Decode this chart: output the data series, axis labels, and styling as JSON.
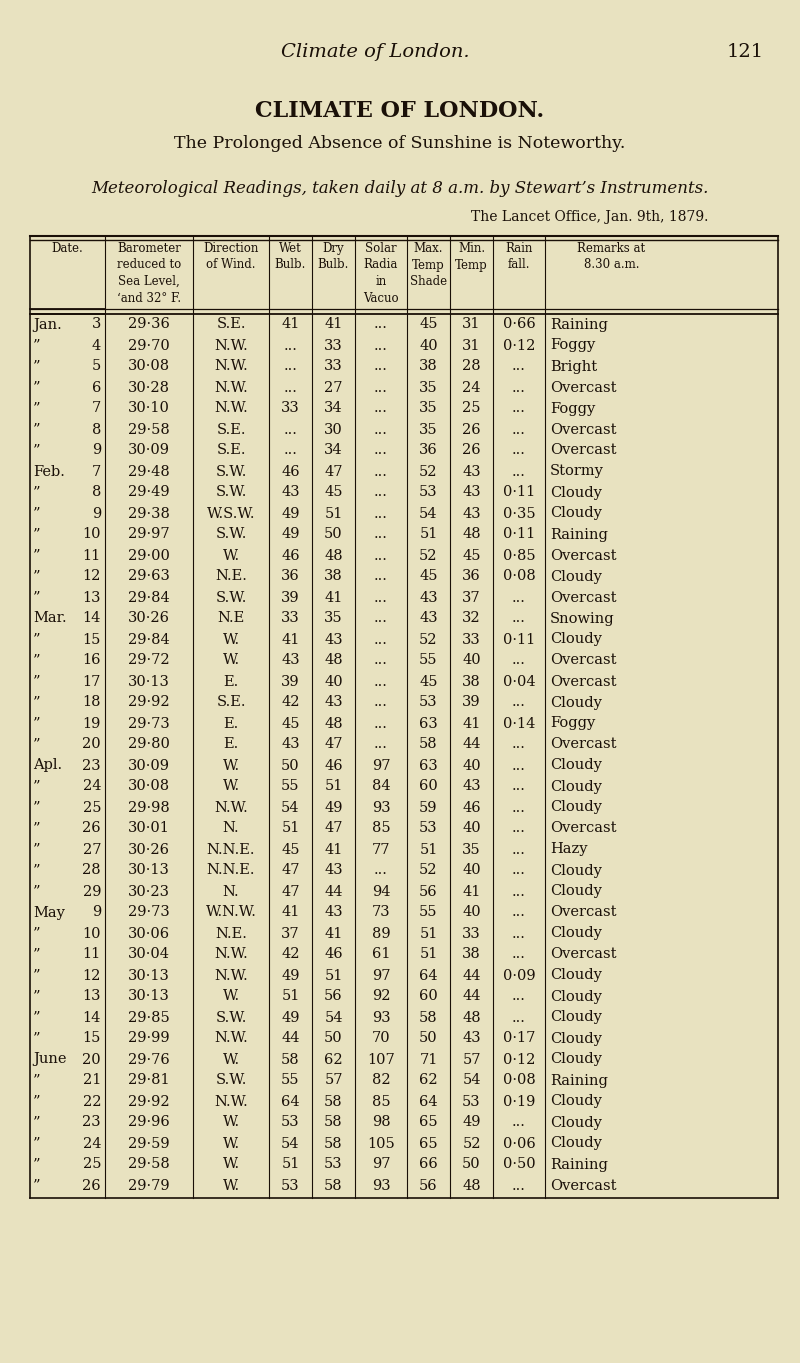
{
  "page_header_italic": "Climate of London.",
  "page_number": "121",
  "title": "CLIMATE OF LONDON.",
  "subtitle": "The Prolonged Absence of Sunshine is Noteworthy.",
  "subtitle2": "Meteorological Readings, taken daily at 8 a.m. by Stewart’s Instruments.",
  "source_line": "The Lancet Office, Jan. 9th, 1879.",
  "bg_color": "#e8e2c0",
  "text_color": "#1a1008",
  "rows": [
    [
      "Jan.",
      "3",
      "29·36",
      "S.E.",
      "41",
      "41",
      "...",
      "45",
      "31",
      "0·66",
      "Raining"
    ],
    [
      "”",
      "4",
      "29·70",
      "N.W.",
      "...",
      "33",
      "...",
      "40",
      "31",
      "0·12",
      "Foggy"
    ],
    [
      "”",
      "5",
      "30·08",
      "N.W.",
      "...",
      "33",
      "...",
      "38",
      "28",
      "...",
      "Bright"
    ],
    [
      "”",
      "6",
      "30·28",
      "N.W.",
      "...",
      "27",
      "...",
      "35",
      "24",
      "...",
      "Overcast"
    ],
    [
      "”",
      "7",
      "30·10",
      "N.W.",
      "33",
      "34",
      "...",
      "35",
      "25",
      "...",
      "Foggy"
    ],
    [
      "”",
      "8",
      "29·58",
      "S.E.",
      "...",
      "30",
      "...",
      "35",
      "26",
      "...",
      "Overcast"
    ],
    [
      "”",
      "9",
      "30·09",
      "S.E.",
      "...",
      "34",
      "...",
      "36",
      "26",
      "...",
      "Overcast"
    ],
    [
      "Feb.",
      "7",
      "29·48",
      "S.W.",
      "46",
      "47",
      "...",
      "52",
      "43",
      "...",
      "Stormy"
    ],
    [
      "”",
      "8",
      "29·49",
      "S.W.",
      "43",
      "45",
      "...",
      "53",
      "43",
      "0·11",
      "Cloudy"
    ],
    [
      "”",
      "9",
      "29·38",
      "W.S.W.",
      "49",
      "51",
      "...",
      "54",
      "43",
      "0·35",
      "Cloudy"
    ],
    [
      "”",
      "10",
      "29·97",
      "S.W.",
      "49",
      "50",
      "...",
      "51",
      "48",
      "0·11",
      "Raining"
    ],
    [
      "”",
      "11",
      "29·00",
      "W.",
      "46",
      "48",
      "...",
      "52",
      "45",
      "0·85",
      "Overcast"
    ],
    [
      "”",
      "12",
      "29·63",
      "N.E.",
      "36",
      "38",
      "...",
      "45",
      "36",
      "0·08",
      "Cloudy"
    ],
    [
      "”",
      "13",
      "29·84",
      "S.W.",
      "39",
      "41",
      "...",
      "43",
      "37",
      "...",
      "Overcast"
    ],
    [
      "Mar.",
      "14",
      "30·26",
      "N.E",
      "33",
      "35",
      "...",
      "43",
      "32",
      "...",
      "Snowing"
    ],
    [
      "”",
      "15",
      "29·84",
      "W.",
      "41",
      "43",
      "...",
      "52",
      "33",
      "0·11",
      "Cloudy"
    ],
    [
      "”",
      "16",
      "29·72",
      "W.",
      "43",
      "48",
      "...",
      "55",
      "40",
      "...",
      "Overcast"
    ],
    [
      "”",
      "17",
      "30·13",
      "E.",
      "39",
      "40",
      "...",
      "45",
      "38",
      "0·04",
      "Overcast"
    ],
    [
      "”",
      "18",
      "29·92",
      "S.E.",
      "42",
      "43",
      "...",
      "53",
      "39",
      "...",
      "Cloudy"
    ],
    [
      "”",
      "19",
      "29·73",
      "E.",
      "45",
      "48",
      "...",
      "63",
      "41",
      "0·14",
      "Foggy"
    ],
    [
      "”",
      "20",
      "29·80",
      "E.",
      "43",
      "47",
      "...",
      "58",
      "44",
      "...",
      "Overcast"
    ],
    [
      "Apl.",
      "23",
      "30·09",
      "W.",
      "50",
      "46",
      "97",
      "63",
      "40",
      "...",
      "Cloudy"
    ],
    [
      "”",
      "24",
      "30·08",
      "W.",
      "55",
      "51",
      "84",
      "60",
      "43",
      "...",
      "Cloudy"
    ],
    [
      "”",
      "25",
      "29·98",
      "N.W.",
      "54",
      "49",
      "93",
      "59",
      "46",
      "...",
      "Cloudy"
    ],
    [
      "”",
      "26",
      "30·01",
      "N.",
      "51",
      "47",
      "85",
      "53",
      "40",
      "...",
      "Overcast"
    ],
    [
      "”",
      "27",
      "30·26",
      "N.N.E.",
      "45",
      "41",
      "77",
      "51",
      "35",
      "...",
      "Hazy"
    ],
    [
      "”",
      "28",
      "30·13",
      "N.N.E.",
      "47",
      "43",
      "...",
      "52",
      "40",
      "...",
      "Cloudy"
    ],
    [
      "”",
      "29",
      "30·23",
      "N.",
      "47",
      "44",
      "94",
      "56",
      "41",
      "...",
      "Cloudy"
    ],
    [
      "May",
      "9",
      "29·73",
      "W.N.W.",
      "41",
      "43",
      "73",
      "55",
      "40",
      "...",
      "Overcast"
    ],
    [
      "”",
      "10",
      "30·06",
      "N.E.",
      "37",
      "41",
      "89",
      "51",
      "33",
      "...",
      "Cloudy"
    ],
    [
      "”",
      "11",
      "30·04",
      "N.W.",
      "42",
      "46",
      "61",
      "51",
      "38",
      "...",
      "Overcast"
    ],
    [
      "”",
      "12",
      "30·13",
      "N.W.",
      "49",
      "51",
      "97",
      "64",
      "44",
      "0·09",
      "Cloudy"
    ],
    [
      "”",
      "13",
      "30·13",
      "W.",
      "51",
      "56",
      "92",
      "60",
      "44",
      "...",
      "Cloudy"
    ],
    [
      "”",
      "14",
      "29·85",
      "S.W.",
      "49",
      "54",
      "93",
      "58",
      "48",
      "...",
      "Cloudy"
    ],
    [
      "”",
      "15",
      "29·99",
      "N.W.",
      "44",
      "50",
      "70",
      "50",
      "43",
      "0·17",
      "Cloudy"
    ],
    [
      "June",
      "20",
      "29·76",
      "W.",
      "58",
      "62",
      "107",
      "71",
      "57",
      "0·12",
      "Cloudy"
    ],
    [
      "”",
      "21",
      "29·81",
      "S.W.",
      "55",
      "57",
      "82",
      "62",
      "54",
      "0·08",
      "Raining"
    ],
    [
      "”",
      "22",
      "29·92",
      "N.W.",
      "64",
      "58",
      "85",
      "64",
      "53",
      "0·19",
      "Cloudy"
    ],
    [
      "”",
      "23",
      "29·96",
      "W.",
      "53",
      "58",
      "98",
      "65",
      "49",
      "...",
      "Cloudy"
    ],
    [
      "”",
      "24",
      "29·59",
      "W.",
      "54",
      "58",
      "105",
      "65",
      "52",
      "0·06",
      "Cloudy"
    ],
    [
      "”",
      "25",
      "29·58",
      "W.",
      "51",
      "53",
      "97",
      "66",
      "50",
      "0·50",
      "Raining"
    ],
    [
      "”",
      "26",
      "29·79",
      "W.",
      "53",
      "58",
      "93",
      "56",
      "48",
      "...",
      "Overcast"
    ]
  ]
}
